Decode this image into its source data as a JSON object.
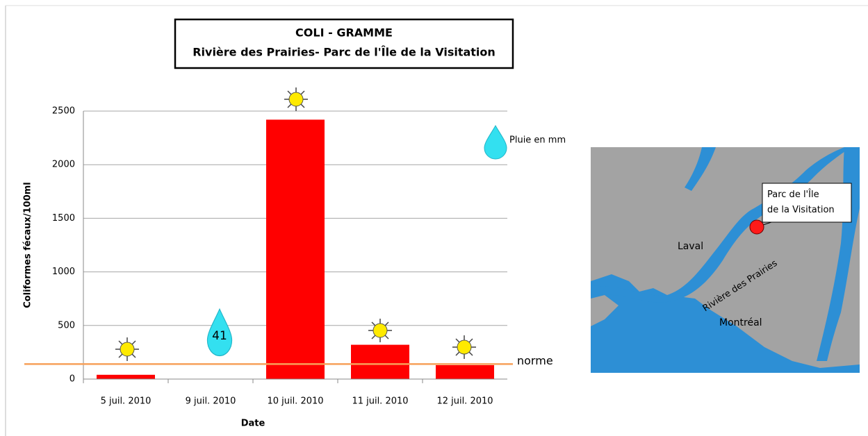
{
  "chart_data": {
    "type": "bar",
    "title": "COLI - GRAMME",
    "subtitle": "Rivière des Prairies- Parc de l'Île de la Visitation",
    "x_label": "Date",
    "y_label": "Coliformes fécaux/100ml",
    "categories": [
      "5 juil. 2010",
      "9 juil. 2010",
      "10 juil. 2010",
      "11 juil. 2010",
      "12 juil. 2010"
    ],
    "values": [
      40,
      0,
      2420,
      320,
      130
    ],
    "color": "#ff0000",
    "ylim": [
      0,
      2500
    ],
    "yticks": [
      0,
      500,
      1000,
      1500,
      2000,
      2500
    ],
    "grid": true,
    "rain": [
      null,
      41,
      null,
      null,
      null
    ],
    "rain_legend": "Pluie en mm",
    "reference_line": {
      "label": "norme",
      "value": 140,
      "color": "#f7a05a"
    }
  },
  "map": {
    "labels": [
      "Laval",
      "Montréal",
      "Rivière des Prairies"
    ],
    "callout": "Parc de l'Île de la Visitation"
  }
}
